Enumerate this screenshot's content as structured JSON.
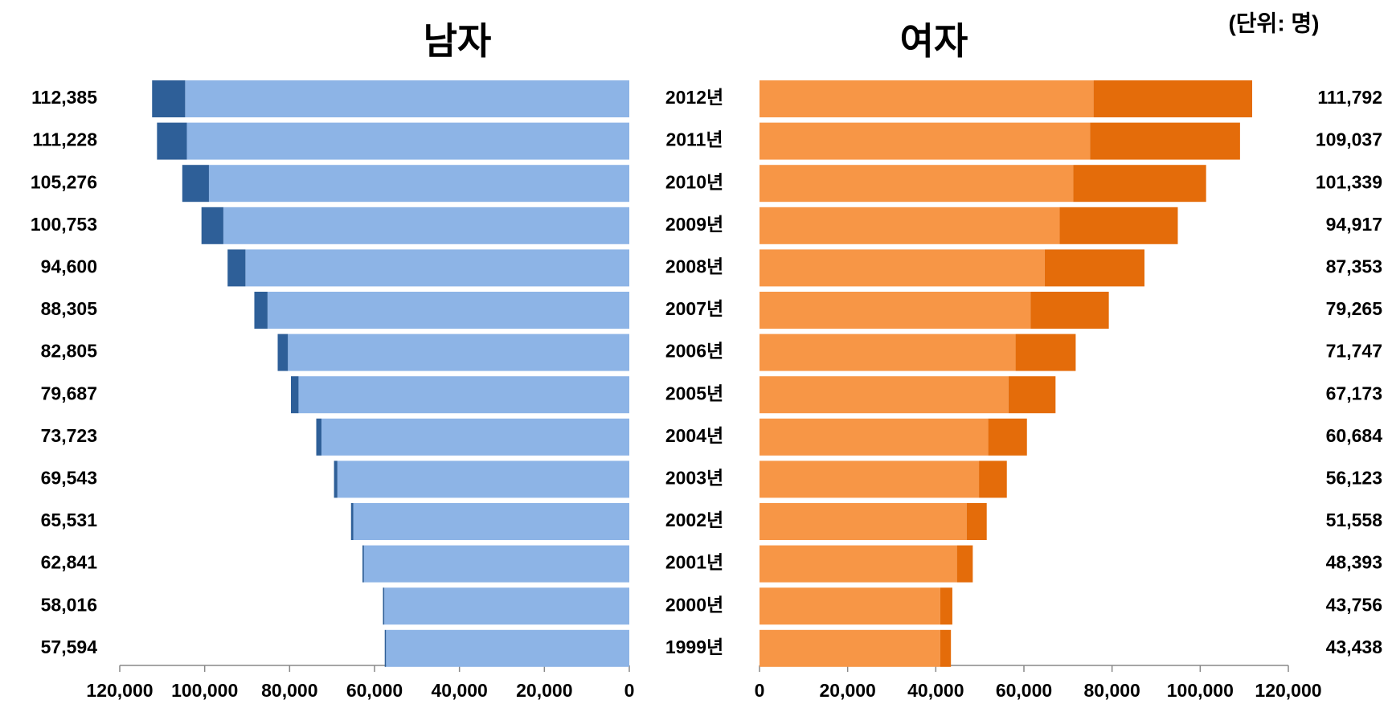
{
  "chart_data": {
    "type": "bar",
    "orientation": "horizontal",
    "stacked": true,
    "unit": "(단위: 명)",
    "categories": [
      "2012년",
      "2011년",
      "2010년",
      "2009년",
      "2008년",
      "2007년",
      "2006년",
      "2005년",
      "2004년",
      "2003년",
      "2002년",
      "2001년",
      "2000년",
      "1999년"
    ],
    "panels": [
      {
        "title": "남자",
        "reversed": true,
        "xlim": [
          0,
          120000
        ],
        "xticks": [
          {
            "value": 120000,
            "label": "120,000"
          },
          {
            "value": 100000,
            "label": "100,000"
          },
          {
            "value": 80000,
            "label": "80,000"
          },
          {
            "value": 60000,
            "label": "60,000"
          },
          {
            "value": 40000,
            "label": "40,000"
          },
          {
            "value": 20000,
            "label": "20,000"
          },
          0
        ],
        "series": [
          {
            "color": "#8db4e6",
            "values": [
              104600,
              104200,
              99000,
              95600,
              90400,
              85200,
              80400,
              77900,
              72500,
              68750,
              65000,
              62500,
              57700,
              57300
            ]
          },
          {
            "color": "#2e5f98",
            "values": [
              7785,
              7028,
              6276,
              5153,
              4200,
              3105,
              2405,
              1787,
              1223,
              793,
              531,
              341,
              316,
              294
            ]
          }
        ],
        "total_labels": [
          "112,385",
          "111,228",
          "105,276",
          "100,753",
          "94,600",
          "88,305",
          "82,805",
          "79,687",
          "73,723",
          "69,543",
          "65,531",
          "62,841",
          "58,016",
          "57,594"
        ]
      },
      {
        "title": "여자",
        "reversed": false,
        "xlim": [
          0,
          120000
        ],
        "xticks": [
          0,
          {
            "value": 20000,
            "label": "20,000"
          },
          {
            "value": 40000,
            "label": "40,000"
          },
          {
            "value": 60000,
            "label": "60,000"
          },
          {
            "value": 80000,
            "label": "80,000"
          },
          {
            "value": 100000,
            "label": "100,000"
          },
          {
            "value": 120000,
            "label": "120,000"
          }
        ],
        "series": [
          {
            "color": "#f79646",
            "values": [
              75800,
              75000,
              71200,
              68100,
              64700,
              61500,
              58100,
              56500,
              51900,
              49800,
              47000,
              44800,
              41000,
              41000
            ]
          },
          {
            "color": "#e46c0a",
            "values": [
              35992,
              34037,
              30139,
              26817,
              22653,
              17765,
              13647,
              10673,
              8784,
              6323,
              4558,
              3593,
              2756,
              2438
            ]
          }
        ],
        "total_labels": [
          "111,792",
          "109,037",
          "101,339",
          "94,917",
          "87,353",
          "79,265",
          "71,747",
          "67,173",
          "60,684",
          "56,123",
          "51,558",
          "48,393",
          "43,756",
          "43,438"
        ]
      }
    ]
  }
}
